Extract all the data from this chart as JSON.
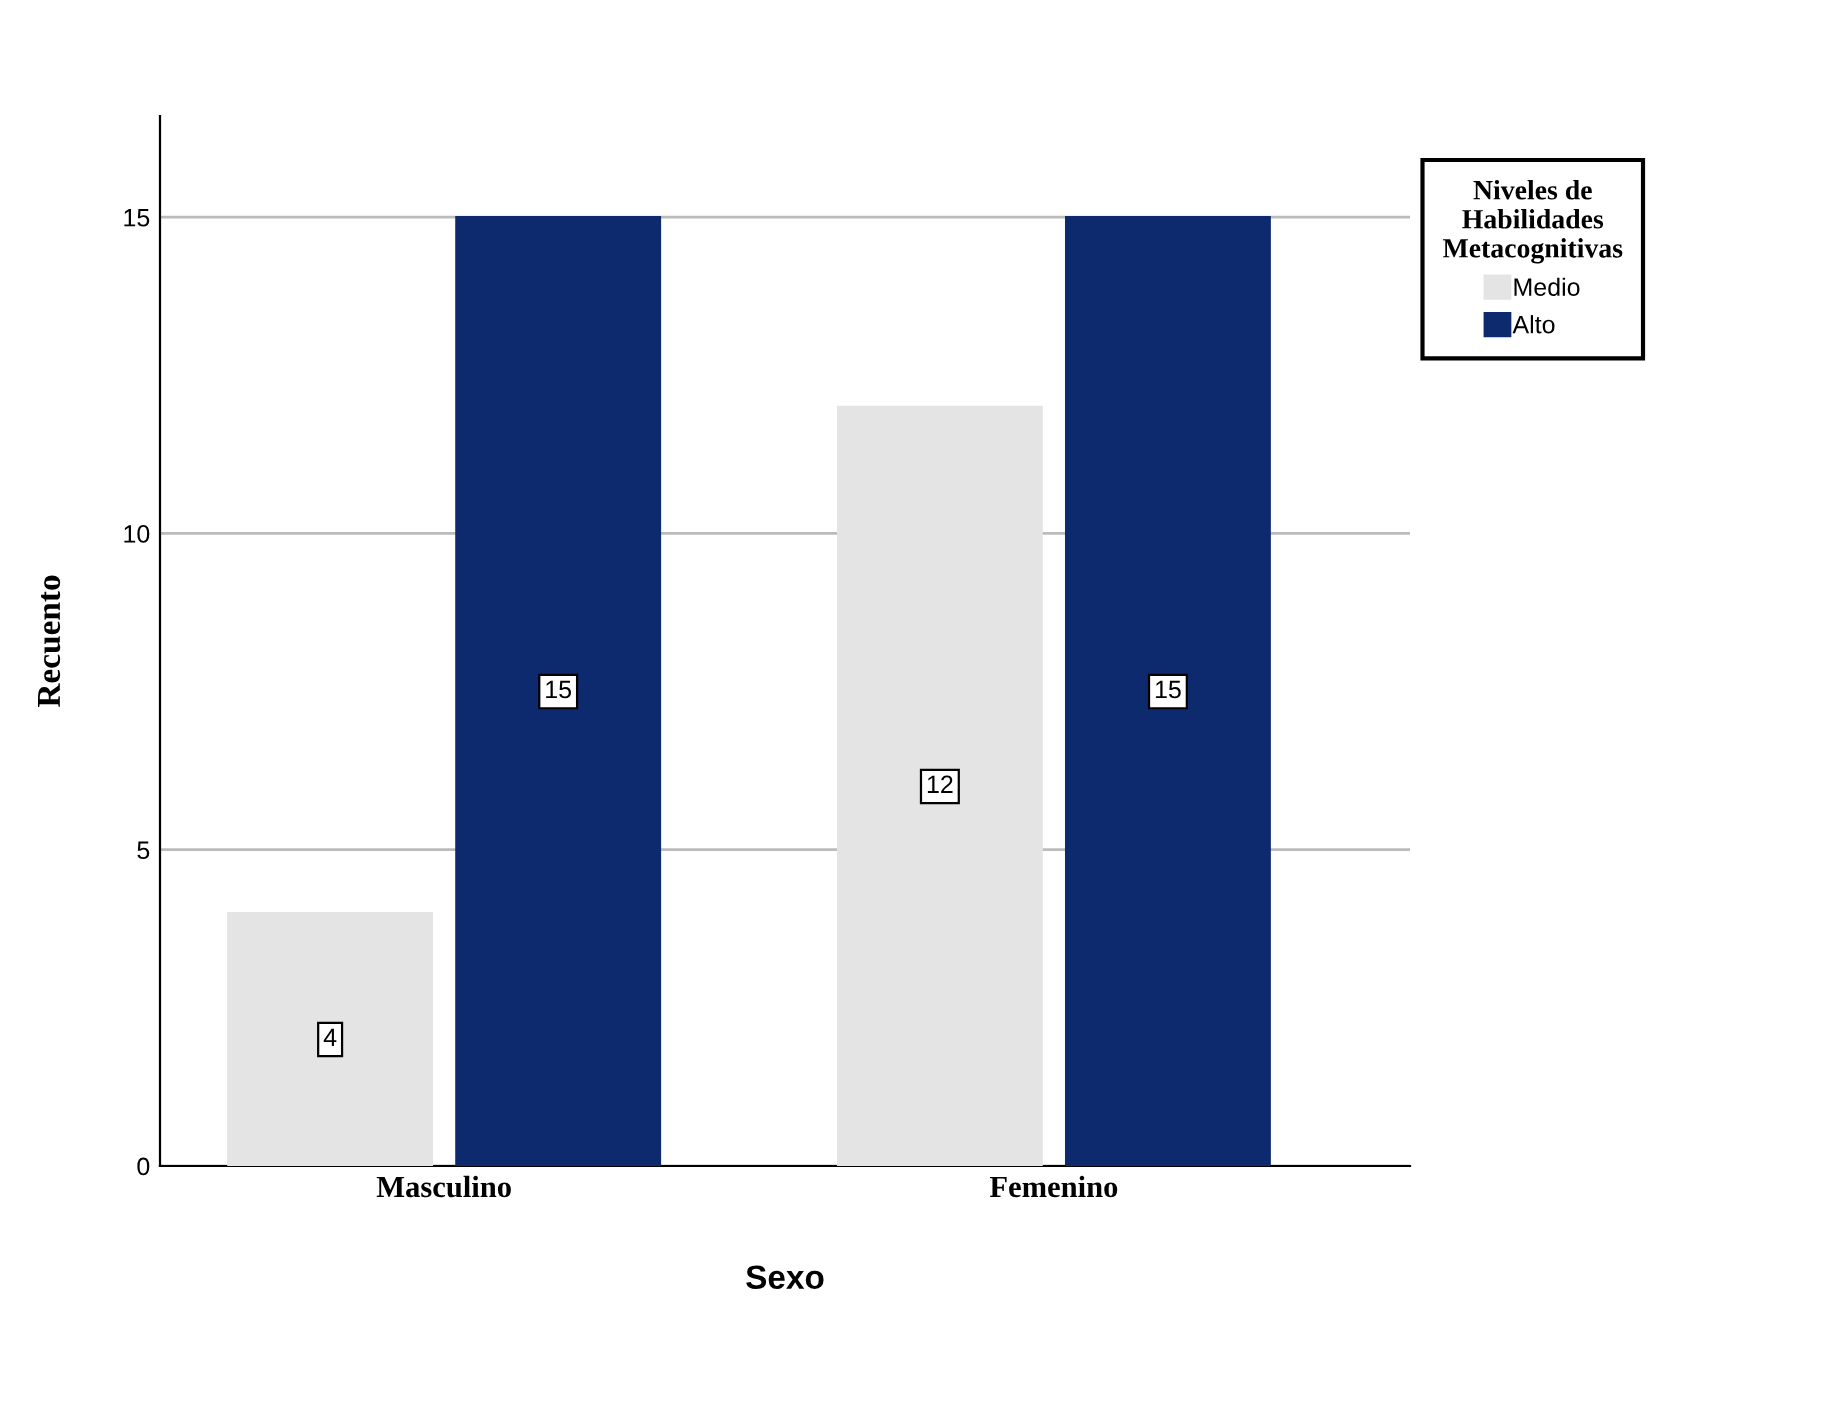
{
  "chart_data": {
    "type": "bar",
    "xlabel": "Sexo",
    "ylabel": "Recuento",
    "legend_title": "Niveles de\nHabilidades\nMetacognitivas",
    "categories": [
      "Masculino",
      "Femenino"
    ],
    "series": [
      {
        "name": "Medio",
        "color": "#e4e4e4",
        "values": [
          4,
          12
        ]
      },
      {
        "name": "Alto",
        "color": "#0d2a6e",
        "values": [
          15,
          15
        ]
      }
    ],
    "ylim": [
      0,
      16.6
    ],
    "yticks": [
      0,
      5,
      10,
      15
    ],
    "grid": "y",
    "legend": "top right",
    "data_labels": true
  }
}
